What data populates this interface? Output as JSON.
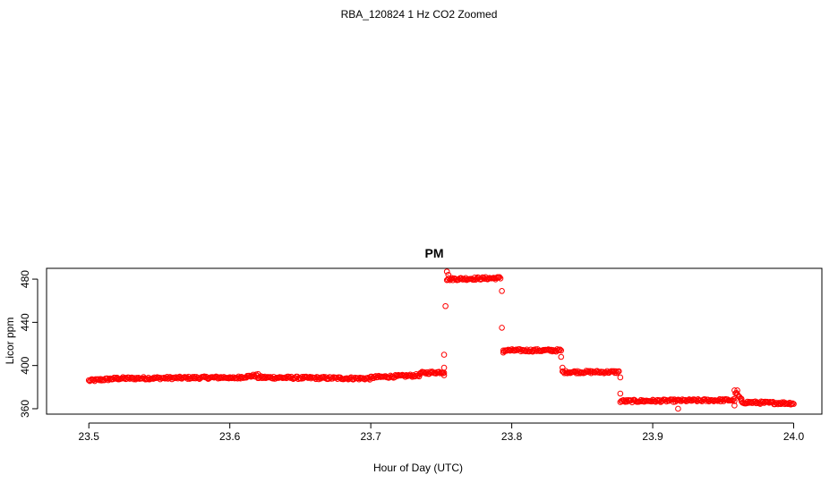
{
  "page": {
    "title": "RBA_120824  1 Hz CO2 Zoomed"
  },
  "chart_data": {
    "type": "scatter",
    "title": "PM",
    "xlabel": "Hour of Day (UTC)",
    "ylabel": "Licor ppm",
    "xlim": [
      23.47,
      24.02
    ],
    "ylim": [
      355,
      490
    ],
    "xticks": [
      23.5,
      23.6,
      23.7,
      23.8,
      23.9,
      24.0
    ],
    "xtick_labels": [
      "23.5",
      "23.6",
      "23.7",
      "23.8",
      "23.9",
      "24.0"
    ],
    "yticks": [
      360,
      400,
      440,
      480
    ],
    "ytick_labels": [
      "360",
      "400",
      "440",
      "480"
    ],
    "grid": false,
    "marker": "open-circle",
    "color": "#ff0000",
    "segments": [
      {
        "x_start": 23.5,
        "x_end": 23.52,
        "y_start": 386,
        "y_end": 388
      },
      {
        "x_start": 23.52,
        "x_end": 23.6,
        "y_start": 388,
        "y_end": 389
      },
      {
        "x_start": 23.6,
        "x_end": 23.62,
        "y_start": 388,
        "y_end": 391
      },
      {
        "x_start": 23.62,
        "x_end": 23.7,
        "y_start": 389,
        "y_end": 388
      },
      {
        "x_start": 23.7,
        "x_end": 23.735,
        "y_start": 389,
        "y_end": 391
      },
      {
        "x_start": 23.735,
        "x_end": 23.752,
        "y_start": 393,
        "y_end": 394
      },
      {
        "x_start": 23.754,
        "x_end": 23.792,
        "y_start": 480,
        "y_end": 481
      },
      {
        "x_start": 23.794,
        "x_end": 23.835,
        "y_start": 414,
        "y_end": 414
      },
      {
        "x_start": 23.836,
        "x_end": 23.876,
        "y_start": 394,
        "y_end": 394
      },
      {
        "x_start": 23.877,
        "x_end": 23.958,
        "y_start": 367,
        "y_end": 368
      },
      {
        "x_start": 23.958,
        "x_end": 23.963,
        "y_start": 376,
        "y_end": 368
      },
      {
        "x_start": 23.963,
        "x_end": 24.0,
        "y_start": 366,
        "y_end": 365
      }
    ],
    "outliers": [
      {
        "x": 23.752,
        "y": 391
      },
      {
        "x": 23.752,
        "y": 398
      },
      {
        "x": 23.752,
        "y": 410
      },
      {
        "x": 23.753,
        "y": 455
      },
      {
        "x": 23.754,
        "y": 487
      },
      {
        "x": 23.755,
        "y": 484
      },
      {
        "x": 23.793,
        "y": 469
      },
      {
        "x": 23.793,
        "y": 435
      },
      {
        "x": 23.794,
        "y": 412
      },
      {
        "x": 23.835,
        "y": 408
      },
      {
        "x": 23.836,
        "y": 398
      },
      {
        "x": 23.877,
        "y": 389
      },
      {
        "x": 23.877,
        "y": 374
      },
      {
        "x": 23.918,
        "y": 360
      },
      {
        "x": 23.958,
        "y": 363
      },
      {
        "x": 23.96,
        "y": 377
      }
    ]
  }
}
